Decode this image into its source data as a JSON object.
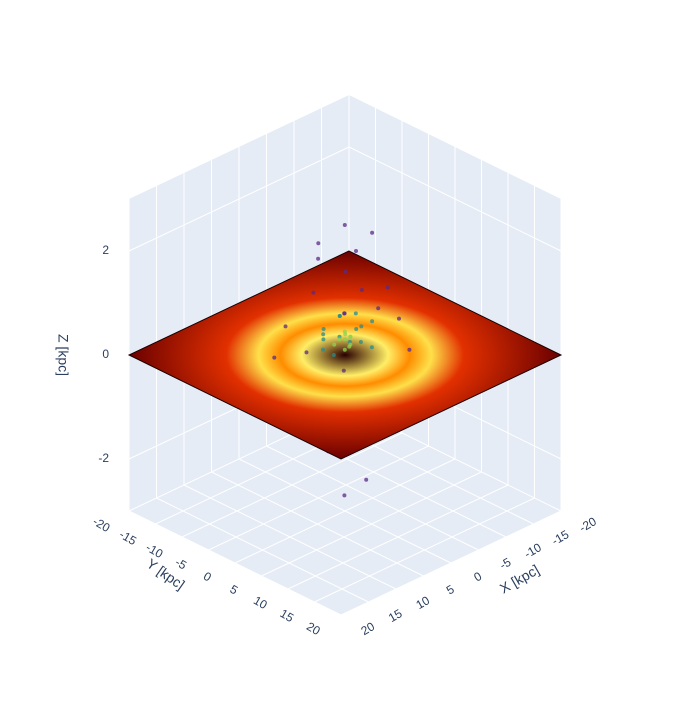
{
  "chart_data": {
    "type": "scatter3d",
    "xaxis_title": "X [kpc]",
    "yaxis_title": "Y [kpc]",
    "zaxis_title": "Z [kpc]",
    "xlim": [
      -20,
      20
    ],
    "ylim": [
      -20,
      20
    ],
    "zlim": [
      -3,
      3
    ],
    "xticks": [
      -20,
      -15,
      -10,
      -5,
      0,
      5,
      10,
      15,
      20
    ],
    "yticks": [
      -20,
      -15,
      -10,
      -5,
      0,
      5,
      10,
      15,
      20
    ],
    "zticks": [
      -2,
      0,
      2
    ],
    "grid": true,
    "surface_z": 0,
    "series": [
      {
        "color": "#5b2a86",
        "x": [
          2,
          -3,
          4,
          -5,
          6,
          -2,
          1,
          -6,
          3,
          5,
          -4,
          0,
          7,
          -7,
          2,
          -1,
          8,
          -3,
          4,
          -5,
          1,
          3,
          -2,
          6,
          -8,
          0,
          9,
          -4,
          2,
          -1
        ],
        "y": [
          -3,
          2,
          4,
          -2,
          -5,
          6,
          1,
          3,
          -6,
          2,
          -5,
          4,
          0,
          -1,
          7,
          -7,
          3,
          -3,
          -2,
          5,
          -4,
          3,
          0,
          6,
          2,
          -2,
          -4,
          8,
          2,
          3
        ],
        "values": [
          1.8,
          2.3,
          1.2,
          0.9,
          0.6,
          1.5,
          2.6,
          -1.1,
          -0.8,
          -1.5,
          -1.9,
          -2.2,
          0.4,
          0.5,
          -0.6,
          0.8,
          -0.4,
          1.3,
          -1.2,
          0.7,
          2.0,
          -2.4,
          1.9,
          0.3,
          -0.3,
          -1.6,
          0.2,
          0.3,
          1.0,
          -1.0
        ]
      },
      {
        "color": "#2a8c8c",
        "x": [
          1,
          -2,
          2,
          -1,
          3,
          0,
          -3,
          2,
          -2,
          1,
          -3,
          3,
          0,
          -1,
          4
        ],
        "y": [
          0,
          1,
          -2,
          -2,
          1,
          3,
          -1,
          3,
          3,
          -3,
          2,
          -1,
          -1,
          1,
          0
        ],
        "values": [
          0.4,
          0.5,
          0.3,
          0.6,
          0.2,
          0.4,
          0.3,
          0.5,
          0.2,
          0.4,
          0.6,
          0.5,
          0.7,
          0.8,
          0.3
        ]
      },
      {
        "color": "#8fd14f",
        "x": [
          0,
          1,
          -1,
          0,
          1,
          -1,
          0.5,
          -0.5,
          0.5,
          0
        ],
        "y": [
          0,
          1,
          0,
          1,
          -1,
          -1,
          0.5,
          0.5,
          -0.5,
          0.8
        ],
        "values": [
          0.3,
          0.2,
          0.3,
          0.4,
          0.2,
          0.3,
          0.5,
          0.2,
          0.3,
          0.2
        ]
      }
    ]
  }
}
